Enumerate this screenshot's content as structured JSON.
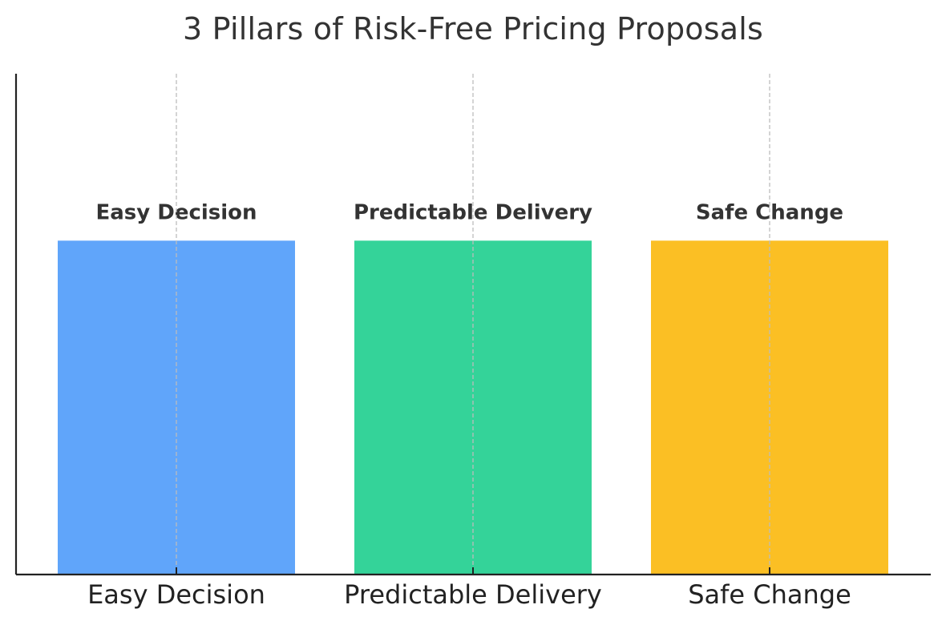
{
  "chart_data": {
    "type": "bar",
    "title": "3 Pillars of Risk-Free Pricing Proposals",
    "xlabel": "",
    "ylabel": "",
    "categories": [
      "Easy Decision",
      "Predictable Delivery",
      "Safe Change"
    ],
    "values": [
      1,
      1,
      1
    ],
    "bar_labels": [
      "Easy Decision",
      "Predictable Delivery",
      "Safe Change"
    ],
    "colors": [
      "#60a5fa",
      "#34d399",
      "#fbbf24"
    ],
    "ylim": [
      0,
      1.5
    ],
    "grid": "x-dashed",
    "y_axis_ticks_visible": false
  }
}
